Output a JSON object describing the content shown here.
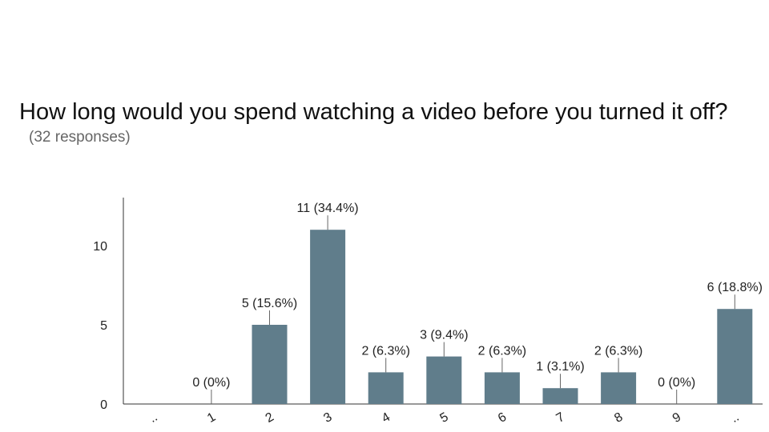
{
  "chart_data": {
    "type": "bar",
    "title": "How long would you spend watching a video before you turned it off?",
    "subtitle": "(32 responses)",
    "categories": [
      "..",
      "1",
      "2",
      "3",
      "4",
      "5",
      "6",
      "7",
      "8",
      "9",
      "..",
      ".."
    ],
    "values": [
      null,
      0,
      5,
      11,
      2,
      3,
      2,
      1,
      2,
      0,
      6,
      null
    ],
    "data_labels": [
      "",
      "0 (0%)",
      "5 (15.6%)",
      "11 (34.4%)",
      "2 (6.3%)",
      "3 (9.4%)",
      "2 (6.3%)",
      "1 (3.1%)",
      "2 (6.3%)",
      "0 (0%)",
      "6 (18.8%)",
      ""
    ],
    "yticks": [
      0,
      5,
      10
    ],
    "ylim": [
      0,
      12
    ],
    "grid": false,
    "legend": "none",
    "bar_color": "#607D8B",
    "axis_color": "#333333"
  }
}
